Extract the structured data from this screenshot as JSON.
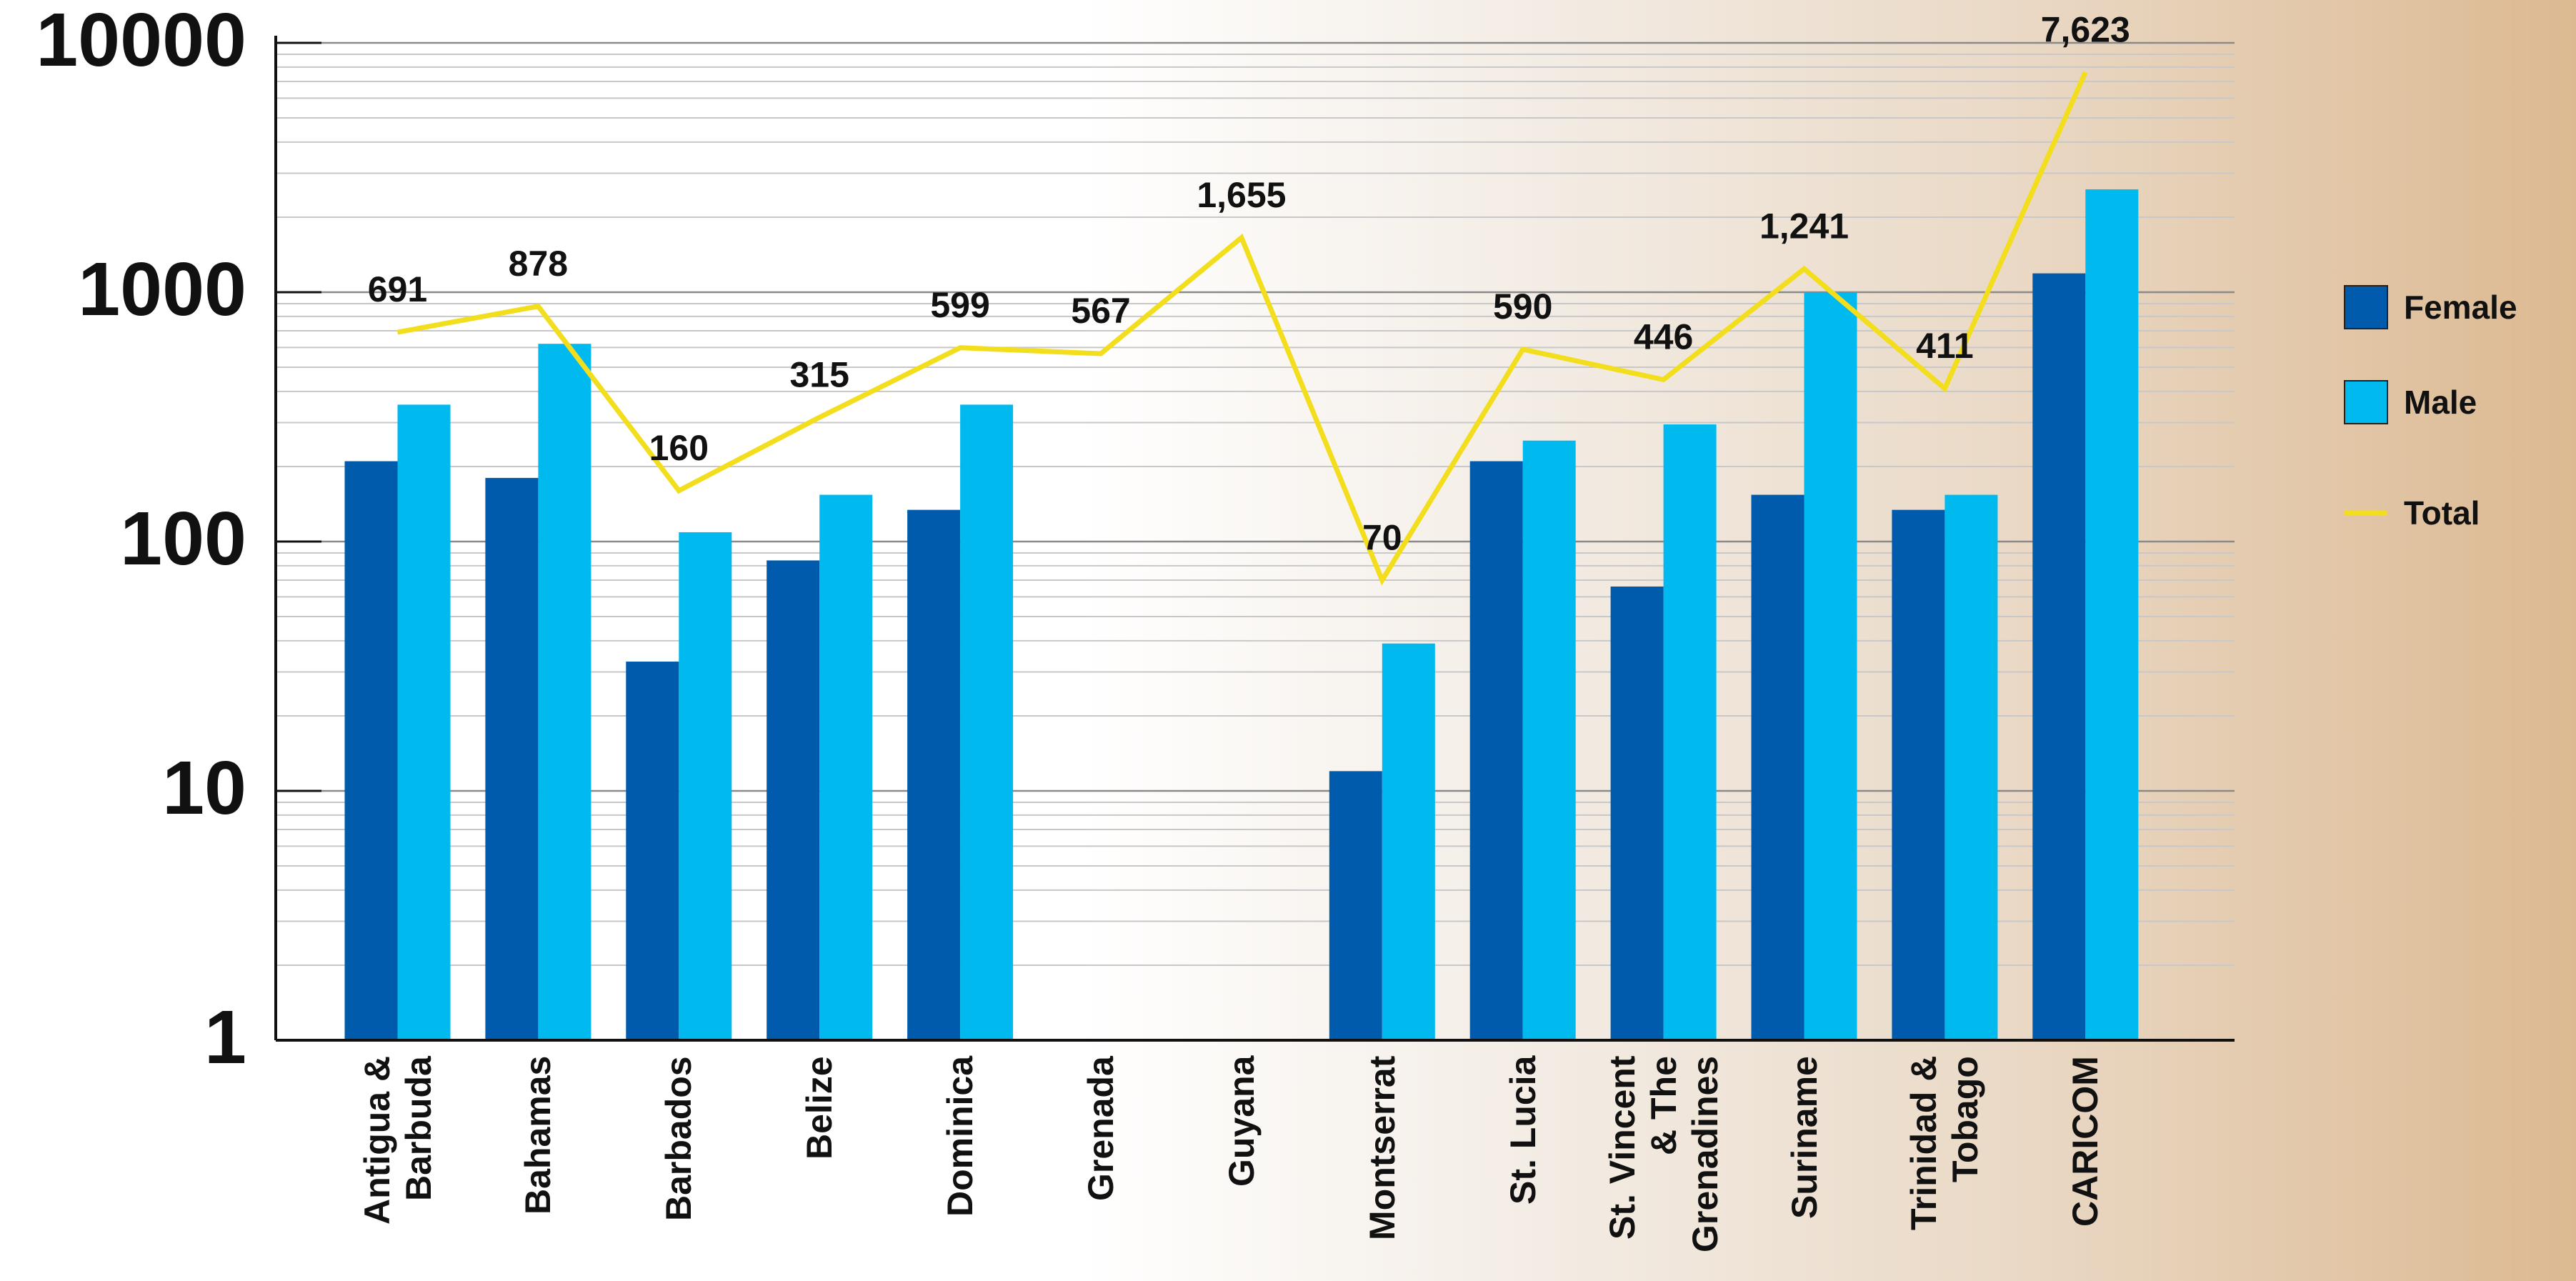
{
  "chart_data": {
    "type": "bar",
    "categories": [
      "Antigua & Barbuda",
      "Bahamas",
      "Barbados",
      "Belize",
      "Dominica",
      "Grenada",
      "Guyana",
      "Montserrat",
      "St. Lucia",
      "St. Vincent & The Grenadines",
      "Suriname",
      "Trinidad & Tobago",
      "CARICOM"
    ],
    "series": [
      {
        "name": "Female",
        "color": "#005bac",
        "type": "bar",
        "values": [
          210,
          180,
          33,
          84,
          134,
          null,
          null,
          12,
          210,
          66,
          154,
          134,
          1190
        ]
      },
      {
        "name": "Male",
        "color": "#00b9ee",
        "type": "bar",
        "values": [
          354,
          621,
          109,
          154,
          354,
          null,
          null,
          39,
          254,
          295,
          1000,
          154,
          2585
        ]
      },
      {
        "name": "Total",
        "color": "#f2de1c",
        "type": "line",
        "values": [
          691,
          878,
          160,
          315,
          599,
          567,
          1655,
          70,
          590,
          446,
          1241,
          411,
          7623
        ],
        "value_labels": [
          "691",
          "878",
          "160",
          "315",
          "599",
          "567",
          "1,655",
          "70",
          "590",
          "446",
          "1,241",
          "411",
          "7,623"
        ]
      }
    ],
    "ylim": [
      1,
      10000
    ],
    "yticks": [
      1,
      10,
      100,
      1000,
      10000
    ],
    "log_scale": true,
    "grid": true,
    "minor_grid": true,
    "legend": "right"
  }
}
